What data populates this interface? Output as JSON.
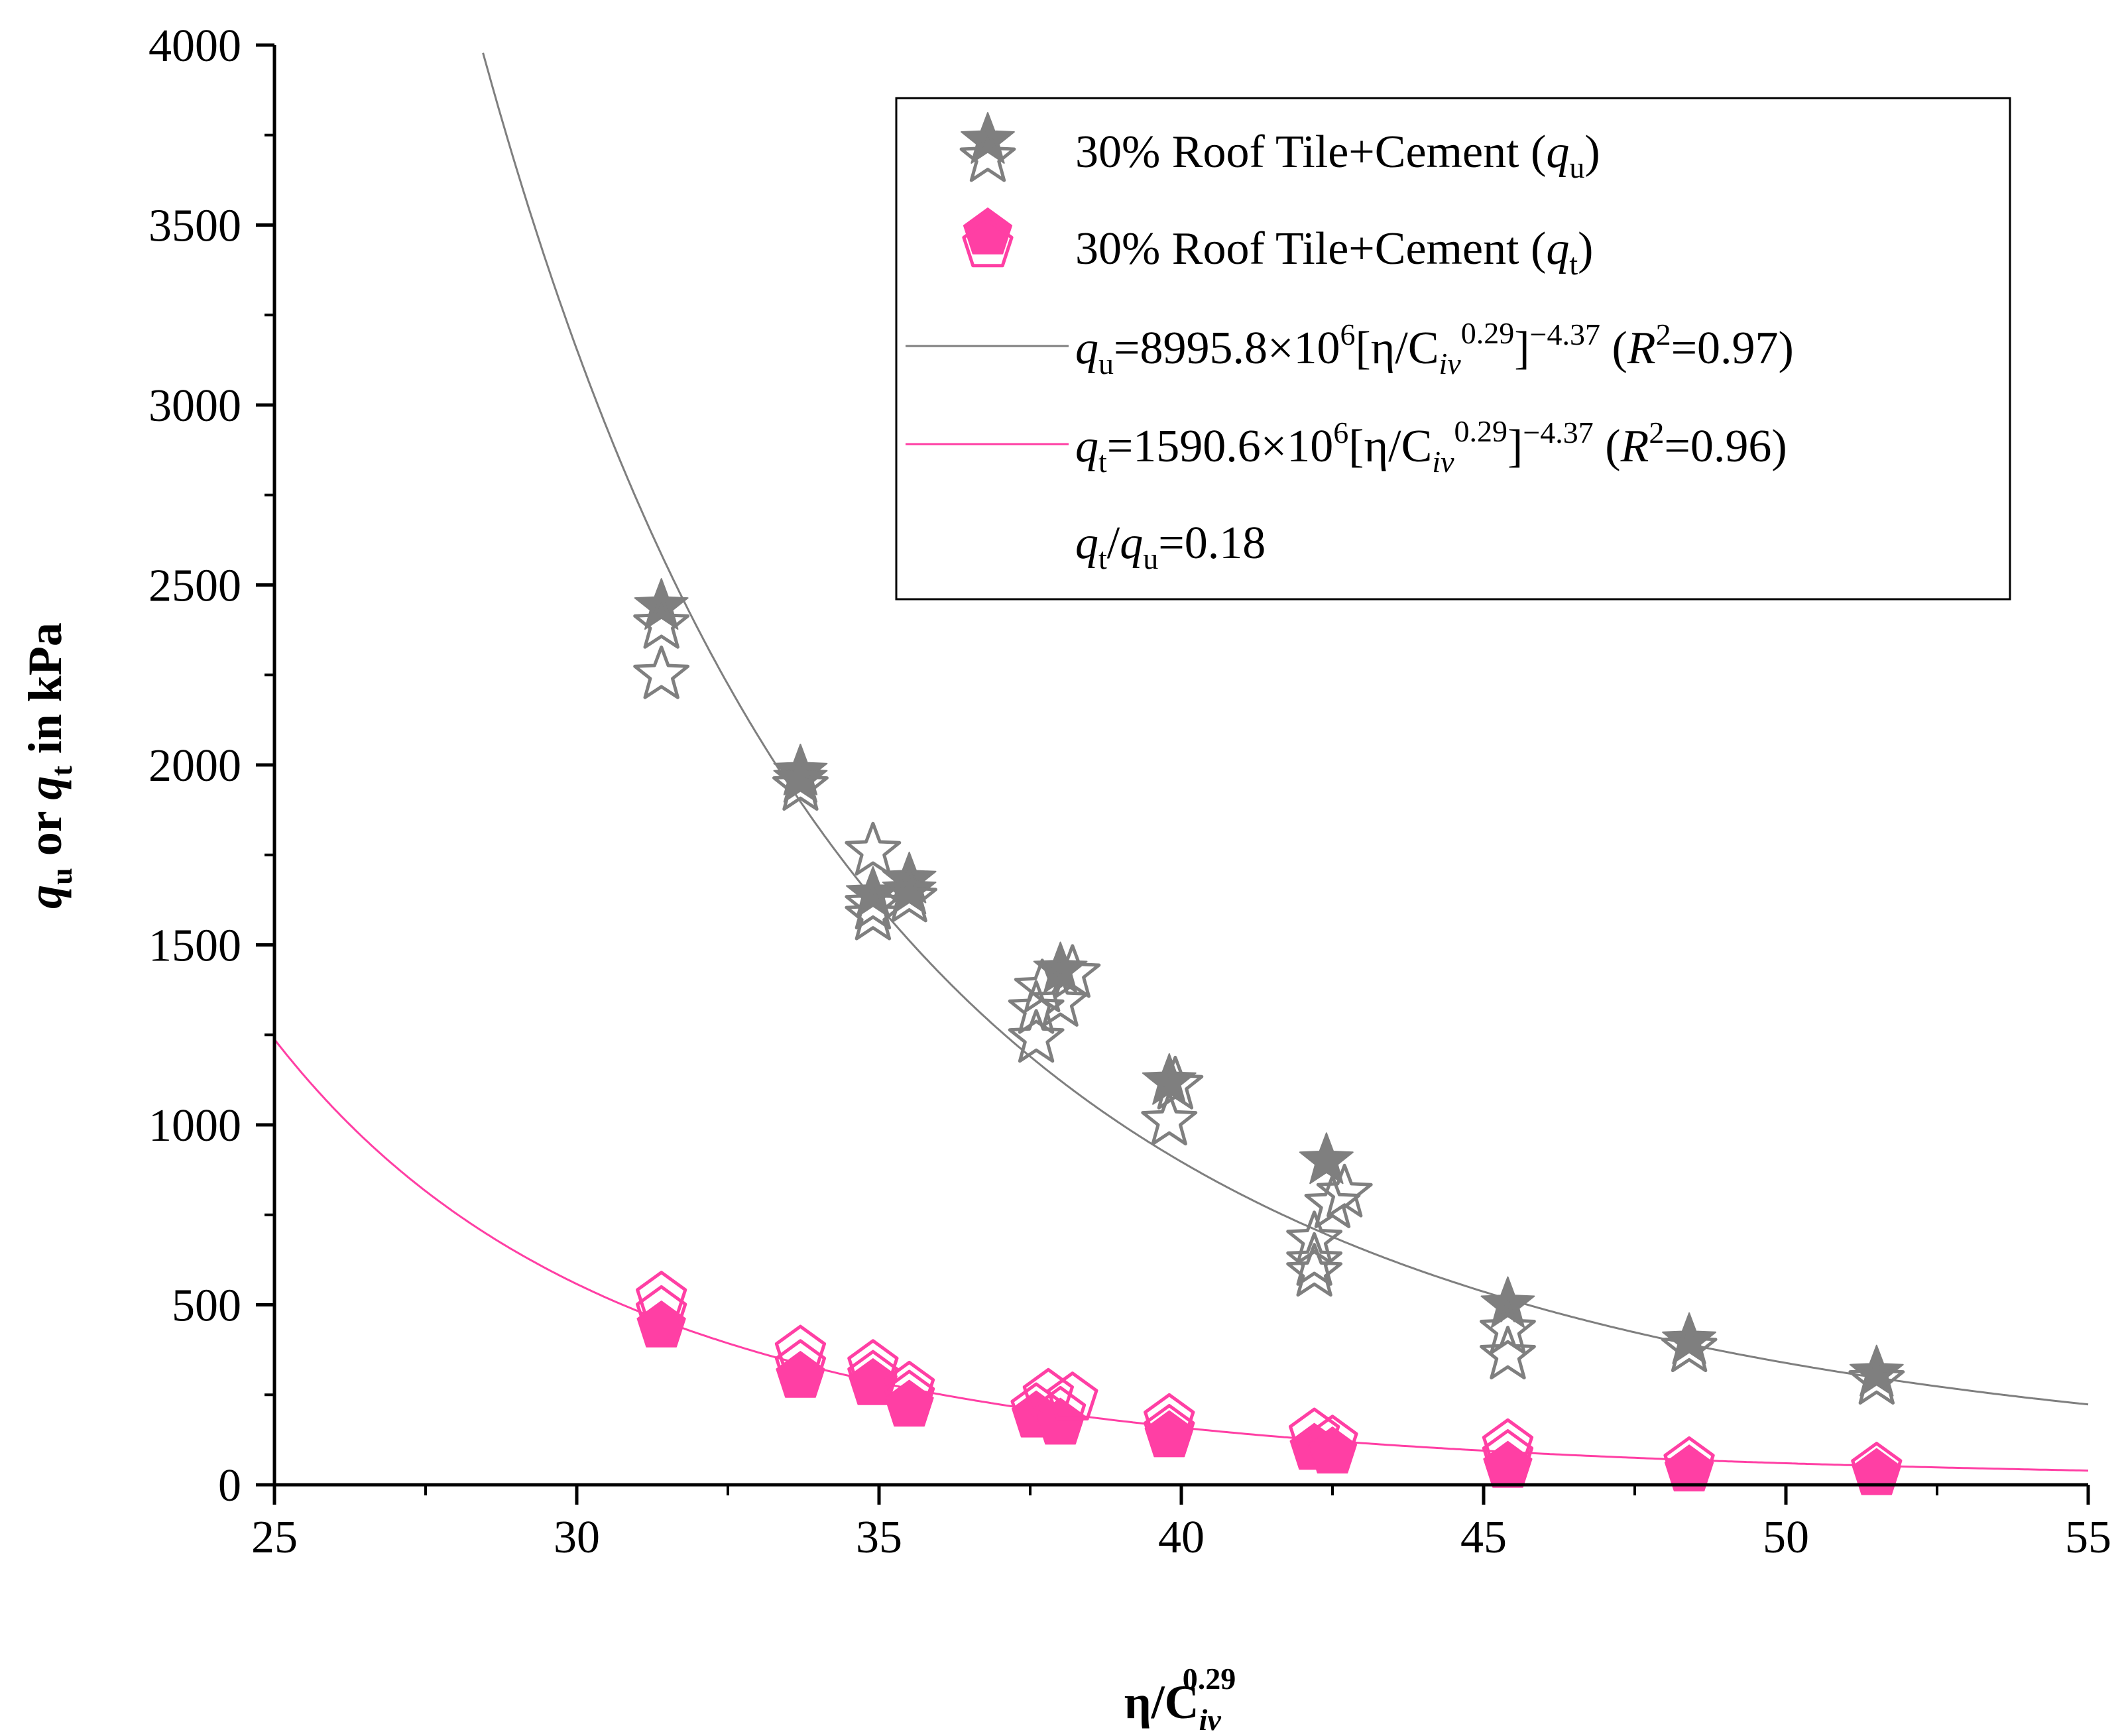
{
  "chart_data": {
    "type": "scatter",
    "xlabel": {
      "base": "η/C",
      "sub": "iv",
      "sup": "0.29"
    },
    "ylabel": {
      "q1": "q",
      "sub1": "u",
      "mid": " or ",
      "q2": "q",
      "sub2": "t",
      "tail": " in kPa"
    },
    "xlim": [
      25,
      55
    ],
    "ylim": [
      0,
      4000
    ],
    "xticks": [
      "25",
      "30",
      "35",
      "40",
      "45",
      "50",
      "55"
    ],
    "yticks": [
      "0",
      "500",
      "1000",
      "1500",
      "2000",
      "2500",
      "3000",
      "3500",
      "4000"
    ],
    "series": [
      {
        "name": "30% Roof Tile+Cement (qu)",
        "marker": "star",
        "color": "#7f7f7f",
        "points": [
          [
            31.4,
            2440,
            "filled"
          ],
          [
            31.4,
            2390,
            "open"
          ],
          [
            31.4,
            2250,
            "open"
          ],
          [
            33.7,
            1980,
            "filled"
          ],
          [
            33.7,
            1960,
            "filled"
          ],
          [
            33.7,
            1940,
            "open"
          ],
          [
            34.9,
            1760,
            "open"
          ],
          [
            34.9,
            1640,
            "filled"
          ],
          [
            34.9,
            1610,
            "open"
          ],
          [
            34.9,
            1580,
            "open"
          ],
          [
            35.5,
            1680,
            "filled"
          ],
          [
            35.5,
            1650,
            "filled"
          ],
          [
            35.5,
            1630,
            "open"
          ],
          [
            37.6,
            1320,
            "open"
          ],
          [
            37.6,
            1240,
            "open"
          ],
          [
            37.7,
            1380,
            "open"
          ],
          [
            38.0,
            1430,
            "filled"
          ],
          [
            38.0,
            1340,
            "open"
          ],
          [
            38.2,
            1420,
            "open"
          ],
          [
            39.8,
            1120,
            "filled"
          ],
          [
            39.9,
            1110,
            "open"
          ],
          [
            39.8,
            1010,
            "open"
          ],
          [
            42.2,
            680,
            "open"
          ],
          [
            42.2,
            620,
            "open"
          ],
          [
            42.2,
            590,
            "open"
          ],
          [
            42.4,
            900,
            "filled"
          ],
          [
            42.5,
            780,
            "open"
          ],
          [
            42.7,
            810,
            "open"
          ],
          [
            45.4,
            500,
            "filled"
          ],
          [
            45.4,
            430,
            "open"
          ],
          [
            45.4,
            360,
            "open"
          ],
          [
            48.4,
            400,
            "filled"
          ],
          [
            48.4,
            380,
            "open"
          ],
          [
            51.5,
            310,
            "filled"
          ],
          [
            51.5,
            290,
            "open"
          ]
        ]
      },
      {
        "name": "30% Roof Tile+Cement (qt)",
        "marker": "pentagon",
        "color": "#ff3fa4",
        "points": [
          [
            31.4,
            520,
            "open"
          ],
          [
            31.4,
            480,
            "open"
          ],
          [
            31.4,
            440,
            "filled"
          ],
          [
            33.7,
            370,
            "open"
          ],
          [
            33.7,
            330,
            "open"
          ],
          [
            33.7,
            300,
            "filled"
          ],
          [
            34.9,
            330,
            "open"
          ],
          [
            34.9,
            300,
            "open"
          ],
          [
            34.9,
            280,
            "filled"
          ],
          [
            35.5,
            270,
            "open"
          ],
          [
            35.5,
            245,
            "open"
          ],
          [
            35.5,
            220,
            "filled"
          ],
          [
            37.6,
            210,
            "open"
          ],
          [
            37.6,
            190,
            "filled"
          ],
          [
            37.8,
            250,
            "open"
          ],
          [
            38.0,
            200,
            "open"
          ],
          [
            38.0,
            170,
            "filled"
          ],
          [
            38.2,
            240,
            "open"
          ],
          [
            39.8,
            180,
            "open"
          ],
          [
            39.8,
            150,
            "open"
          ],
          [
            39.8,
            135,
            "filled"
          ],
          [
            42.2,
            140,
            "open"
          ],
          [
            42.2,
            100,
            "filled"
          ],
          [
            42.5,
            120,
            "open"
          ],
          [
            42.5,
            90,
            "filled"
          ],
          [
            45.4,
            110,
            "open"
          ],
          [
            45.4,
            80,
            "open"
          ],
          [
            45.4,
            50,
            "filled"
          ],
          [
            48.4,
            60,
            "open"
          ],
          [
            48.4,
            40,
            "filled"
          ],
          [
            51.5,
            45,
            "open"
          ],
          [
            51.5,
            30,
            "filled"
          ]
        ]
      }
    ],
    "fits": [
      {
        "name": "qu fit",
        "coef": 8995800000.0,
        "exponent": -4.37,
        "color": "#7f7f7f"
      },
      {
        "name": "qt fit",
        "coef": 1590600000.0,
        "exponent": -4.37,
        "color": "#ff3fa4"
      }
    ]
  },
  "legend": {
    "entry1": {
      "text": "30% Roof Tile+Cement (",
      "q": "q",
      "sub": "u",
      "close": ")"
    },
    "entry2": {
      "text": "30% Roof Tile+Cement (",
      "q": "q",
      "sub": "t",
      "close": ")"
    },
    "entry3": {
      "q": "q",
      "sub": "u",
      "eq": "=8995.8×10",
      "pow": "6",
      "br": "[η/C",
      "iv": "iv",
      "exp": "0.29",
      "close": "]",
      "neg": "−4.37",
      "r": " (",
      "R": "R",
      "two": "2",
      "val": "=0.97)"
    },
    "entry4": {
      "q": "q",
      "sub": "t",
      "eq": "=1590.6×10",
      "pow": "6",
      "br": "[η/C",
      "iv": "iv",
      "exp": "0.29",
      "close": "]",
      "neg": "−4.37",
      "r": " (",
      "R": "R",
      "two": "2",
      "val": "=0.96)"
    },
    "entry5": {
      "q1": "q",
      "sub1": "t",
      "slash": "/",
      "q2": "q",
      "sub2": "u",
      "val": "=0.18"
    }
  }
}
